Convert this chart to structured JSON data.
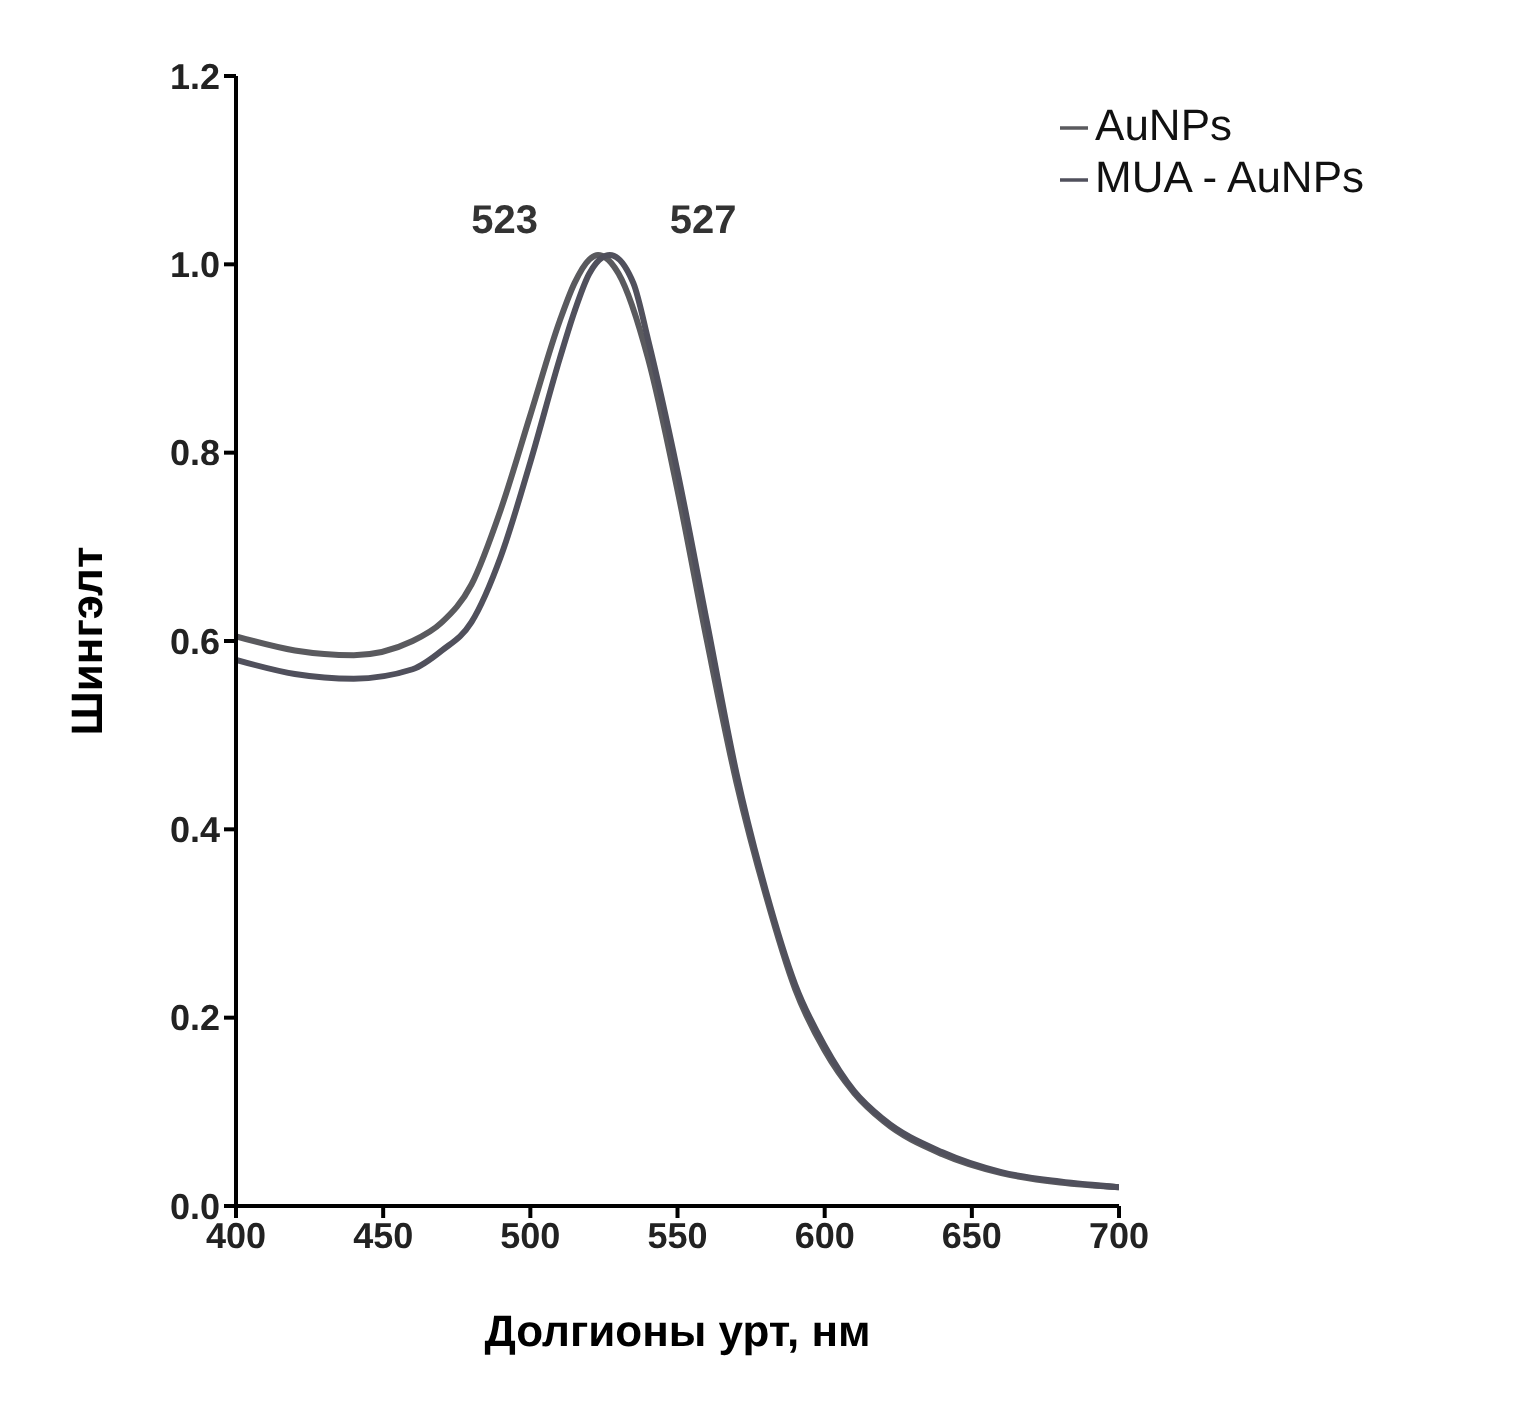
{
  "chart_data": {
    "type": "line",
    "xlabel": "Долгионы урт, нм",
    "ylabel": "Шингэлт",
    "xlim": [
      400,
      700
    ],
    "xticks": [
      400,
      450,
      500,
      550,
      600,
      650,
      700
    ],
    "ylim": [
      0,
      1.2
    ],
    "yticks": [
      {
        "value": 0,
        "label": "0.0"
      },
      0.2,
      0.4,
      0.6,
      0.8,
      {
        "value": 1,
        "label": "1.0"
      },
      1.2
    ],
    "legend": "top right",
    "grid": false,
    "marker": "none",
    "line_style": "solid",
    "annotations": [
      {
        "text": "523",
        "x": 523,
        "y": 1.01
      },
      {
        "text": "527",
        "x": 527,
        "y": 1.01
      }
    ],
    "series": [
      {
        "name": "AuNPs",
        "color": "#5a5a5e",
        "x": [
          400,
          420,
          440,
          460,
          470,
          480,
          490,
          500,
          510,
          515,
          520,
          523,
          530,
          540,
          550,
          560,
          570,
          580,
          590,
          600,
          610,
          620,
          640,
          660,
          680,
          700
        ],
        "values": [
          0.605,
          0.59,
          0.585,
          0.6,
          0.62,
          0.66,
          0.74,
          0.84,
          0.94,
          0.98,
          1.005,
          1.01,
          0.99,
          0.9,
          0.76,
          0.6,
          0.45,
          0.33,
          0.23,
          0.165,
          0.12,
          0.09,
          0.055,
          0.035,
          0.025,
          0.02
        ]
      },
      {
        "name": "MUA - AuNPs",
        "color": "#50505c",
        "x": [
          400,
          420,
          440,
          460,
          470,
          480,
          490,
          500,
          510,
          515,
          520,
          527,
          535,
          540,
          550,
          560,
          570,
          580,
          590,
          600,
          610,
          620,
          640,
          660,
          680,
          700
        ],
        "values": [
          0.58,
          0.565,
          0.56,
          0.57,
          0.59,
          0.62,
          0.69,
          0.79,
          0.9,
          0.95,
          0.99,
          1.01,
          0.98,
          0.92,
          0.78,
          0.62,
          0.46,
          0.335,
          0.235,
          0.17,
          0.122,
          0.092,
          0.057,
          0.036,
          0.026,
          0.02
        ]
      }
    ]
  }
}
